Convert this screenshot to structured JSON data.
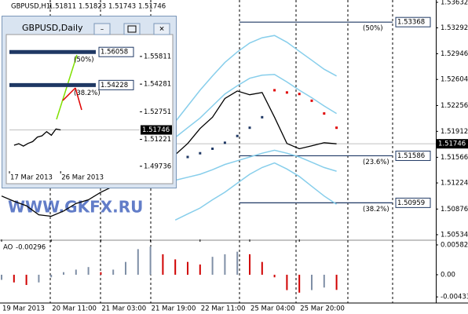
{
  "chart_data": [
    {
      "type": "line",
      "title": "GBPUSD,H1",
      "ohlc": [
        1.51811,
        1.51823,
        1.51743,
        1.51746
      ],
      "watermark": "WWW.GKFX.RU",
      "x": [
        0,
        4,
        8,
        12,
        16,
        20,
        24,
        28,
        32,
        36,
        40,
        44,
        48,
        52,
        56,
        60,
        64,
        68,
        72,
        76,
        80,
        84,
        88,
        92,
        96,
        100,
        104,
        108
      ],
      "xlim": [
        0,
        140
      ],
      "xticks": [
        {
          "value": 0,
          "label": "19 Mar 2013"
        },
        {
          "value": 16,
          "label": "20 Mar 11:00"
        },
        {
          "value": 32,
          "label": "21 Mar 03:00"
        },
        {
          "value": 48,
          "label": "21 Mar 19:00"
        },
        {
          "value": 64,
          "label": "22 Mar 11:00"
        },
        {
          "value": 80,
          "label": "25 Mar 04:00"
        },
        {
          "value": 96,
          "label": "25 Mar 20:00"
        }
      ],
      "ylim": [
        1.50471,
        1.53663
      ],
      "yticks": [
        1.53632,
        1.53292,
        1.52946,
        1.52604,
        1.52256,
        1.51912,
        1.51566,
        1.51224,
        1.50876,
        1.50534
      ],
      "series": [
        {
          "color": "#000000",
          "style": "line",
          "values": [
            1.5105,
            1.5098,
            1.5092,
            1.508,
            1.5078,
            1.5085,
            1.5095,
            1.51,
            1.511,
            1.5118,
            1.5125,
            1.513,
            1.514,
            1.515,
            1.516,
            1.5175,
            1.5195,
            1.521,
            1.5235,
            1.5245,
            1.524,
            1.5243,
            1.521,
            1.5175,
            1.5168,
            1.5172,
            1.5176,
            1.51746
          ]
        },
        {
          "color": "#87ceeb",
          "style": "line",
          "values": [
            null,
            null,
            null,
            null,
            null,
            null,
            null,
            null,
            null,
            null,
            null,
            null,
            null,
            null,
            1.5204,
            1.5225,
            1.5246,
            1.5265,
            1.5283,
            1.5297,
            1.5309,
            1.5316,
            1.5319,
            1.531,
            1.5298,
            1.5286,
            1.5274,
            1.5265
          ]
        },
        {
          "color": "#87ceeb",
          "style": "line",
          "values": [
            null,
            null,
            null,
            null,
            null,
            null,
            null,
            null,
            null,
            null,
            null,
            null,
            null,
            null,
            1.5073,
            1.5081,
            1.5089,
            1.51,
            1.511,
            1.5122,
            1.5134,
            1.5143,
            1.5149,
            1.5141,
            1.5131,
            1.5118,
            1.5105,
            1.5094
          ]
        },
        {
          "color": "#87ceeb",
          "style": "line",
          "values": [
            null,
            null,
            null,
            null,
            null,
            null,
            null,
            null,
            null,
            null,
            null,
            null,
            null,
            null,
            1.5183,
            1.5196,
            1.5209,
            1.5225,
            1.5241,
            1.5252,
            1.5262,
            1.5266,
            1.5267,
            1.5257,
            1.5246,
            1.5236,
            1.5225,
            1.5215
          ]
        },
        {
          "color": "#87ceeb",
          "style": "line",
          "values": [
            null,
            null,
            null,
            null,
            null,
            null,
            null,
            null,
            null,
            null,
            null,
            null,
            null,
            null,
            1.5126,
            1.513,
            1.5134,
            1.514,
            1.5147,
            1.5152,
            1.5157,
            1.5162,
            1.5166,
            1.5162,
            1.5157,
            1.515,
            1.5143,
            1.5138
          ]
        },
        {
          "color": "#1f3864",
          "style": "dots",
          "values": [
            null,
            null,
            null,
            null,
            null,
            null,
            null,
            null,
            null,
            null,
            null,
            null,
            null,
            null,
            1.5152,
            1.5157,
            1.5162,
            1.5168,
            1.5176,
            1.5185,
            1.5196,
            1.521,
            null,
            null,
            null,
            null,
            null,
            null
          ]
        },
        {
          "color": "#e00000",
          "style": "dots",
          "values": [
            null,
            null,
            null,
            null,
            null,
            null,
            null,
            null,
            null,
            null,
            null,
            null,
            null,
            null,
            null,
            null,
            null,
            null,
            null,
            null,
            null,
            null,
            1.5246,
            1.5243,
            1.5241,
            1.5232,
            1.5215,
            1.5196
          ]
        }
      ],
      "levels": [
        {
          "value": 1.53368,
          "label": "(50%)"
        },
        {
          "value": 1.51586,
          "label": "(23.6%)"
        },
        {
          "value": 1.50959,
          "label": "(38.2%)"
        }
      ],
      "last": 1.51746
    },
    {
      "type": "bar",
      "title": "AO",
      "current": -0.00296,
      "x": [
        0,
        4,
        8,
        12,
        16,
        20,
        24,
        28,
        32,
        36,
        40,
        44,
        48,
        52,
        56,
        60,
        64,
        68,
        72,
        76,
        80,
        84,
        88,
        92,
        96,
        100,
        104,
        108
      ],
      "values": [
        -0.001,
        -0.0015,
        -0.002,
        -0.0015,
        -0.0005,
        0.0005,
        0.001,
        0.0015,
        0.0005,
        0.001,
        0.0025,
        0.005,
        0.0055,
        0.004,
        0.003,
        0.0025,
        0.002,
        0.0035,
        0.004,
        0.0045,
        0.004,
        0.0025,
        -0.0005,
        -0.003,
        -0.0035,
        -0.003,
        -0.0025,
        -0.00296
      ],
      "up_color": "#7f8fa6",
      "down_color": "#d00000",
      "xlim": [
        0,
        140
      ],
      "ylim": [
        -0.00537,
        0.00659
      ],
      "yticks": [
        0.005827,
        {
          "value": 0,
          "label": "0.00"
        },
        -0.00433
      ]
    },
    {
      "type": "line",
      "title": "GBPUSD,Daily",
      "x": [
        1,
        2,
        3,
        4,
        5,
        6,
        7,
        8,
        9,
        10,
        11
      ],
      "xlim": [
        0,
        28
      ],
      "xticks": [
        {
          "value": 0,
          "label": "17 Mar 2013"
        },
        {
          "value": 11,
          "label": "26 Mar 2013"
        }
      ],
      "ylim": [
        1.49466,
        1.56936
      ],
      "yticks": [
        1.55811,
        1.54281,
        1.52751,
        1.51221,
        1.49736
      ],
      "series": [
        {
          "color": "#000000",
          "style": "line",
          "values": [
            1.509,
            1.5098,
            1.5085,
            1.51,
            1.511,
            1.5135,
            1.5142,
            1.5165,
            1.5145,
            1.518,
            1.51746
          ]
        }
      ],
      "levels": [
        {
          "value": 1.56058,
          "label": "(50%)"
        },
        {
          "value": 1.54228,
          "label": "(38.2%)"
        }
      ],
      "last": 1.51746
    }
  ]
}
